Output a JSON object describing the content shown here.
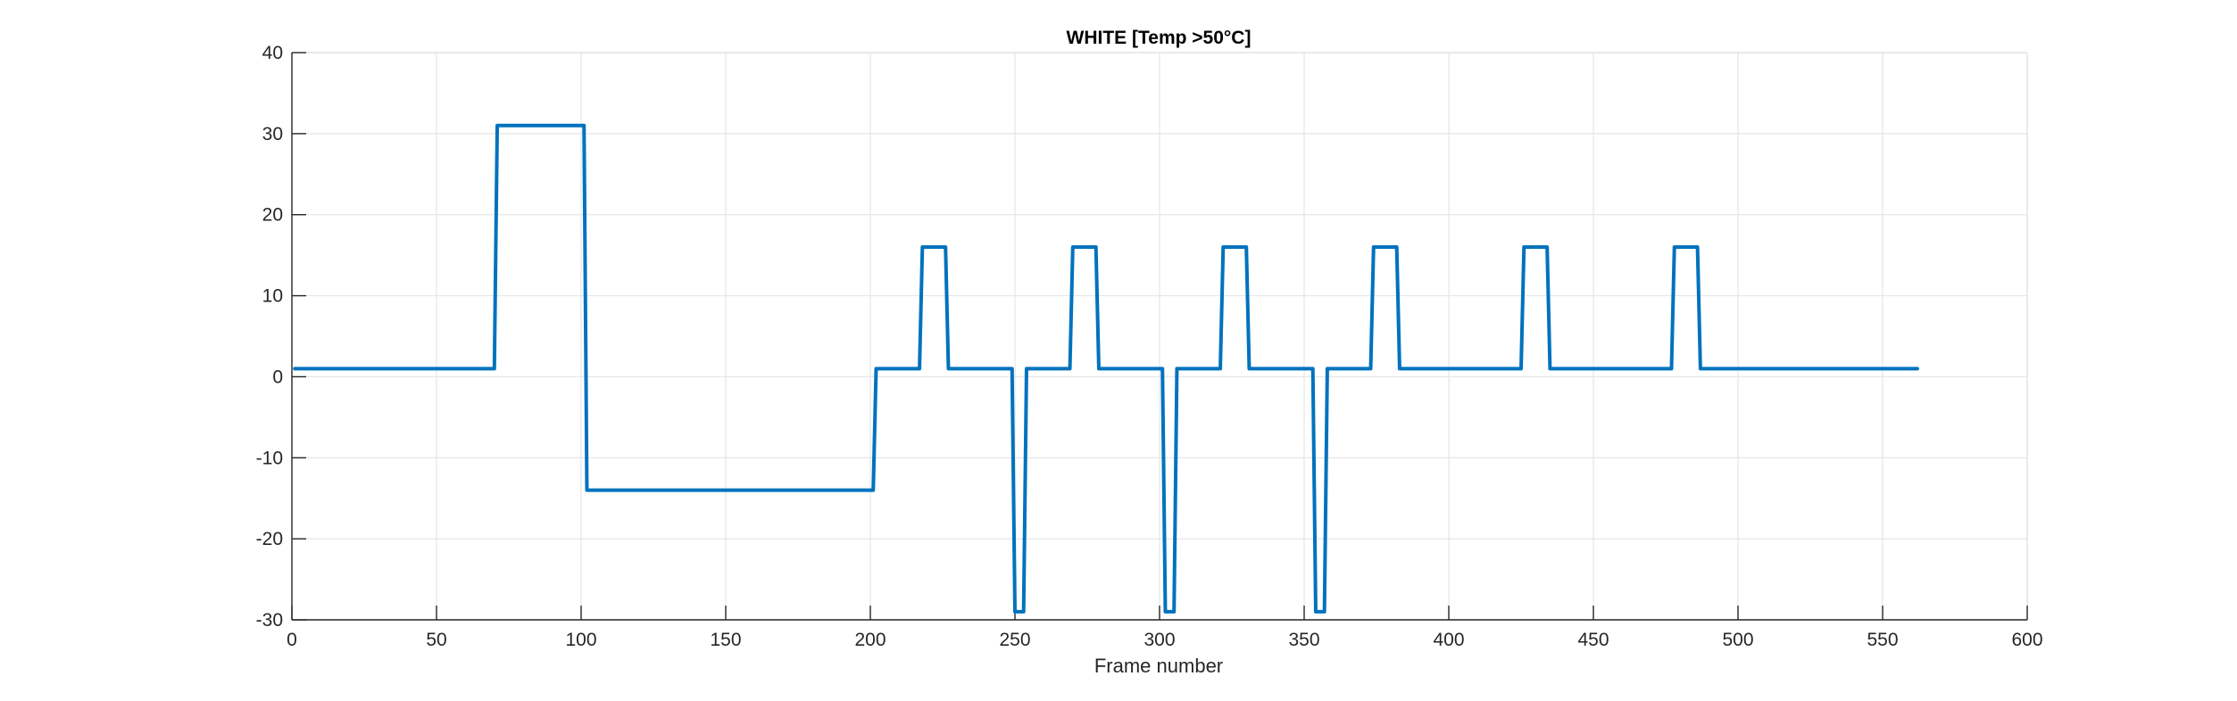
{
  "chart_data": {
    "type": "line",
    "title": "WHITE [Temp >50°C]",
    "xlabel": "Frame number",
    "ylabel": "",
    "xlim": [
      0,
      600
    ],
    "ylim": [
      -30,
      40
    ],
    "xticks": [
      0,
      50,
      100,
      150,
      200,
      250,
      300,
      350,
      400,
      450,
      500,
      550,
      600
    ],
    "yticks": [
      -30,
      -20,
      -10,
      0,
      10,
      20,
      30,
      40
    ],
    "xtick_labels": [
      "0",
      "50",
      "100",
      "150",
      "200",
      "250",
      "300",
      "350",
      "400",
      "450",
      "500",
      "550",
      "600"
    ],
    "ytick_labels": [
      "-30",
      "-20",
      "-10",
      "0",
      "10",
      "20",
      "30",
      "40"
    ],
    "grid": true,
    "colors": {
      "series": "#0072BD",
      "grid": "#e6e6e6",
      "axis": "#262626"
    },
    "series": [
      {
        "x": [
          1,
          70,
          71,
          101,
          102,
          201,
          202,
          217,
          218,
          226,
          227,
          249,
          250,
          253,
          254,
          269,
          270,
          278,
          279,
          301,
          302,
          305,
          306,
          321,
          322,
          330,
          331,
          353,
          354,
          357,
          358,
          373,
          374,
          382,
          383,
          425,
          426,
          434,
          435,
          477,
          478,
          486,
          487,
          562
        ],
        "y": [
          1,
          1,
          31,
          31,
          -14,
          -14,
          1,
          1,
          16,
          16,
          1,
          1,
          -29,
          -29,
          1,
          1,
          16,
          16,
          1,
          1,
          -29,
          -29,
          1,
          1,
          16,
          16,
          1,
          1,
          -29,
          -29,
          1,
          1,
          16,
          16,
          1,
          1,
          16,
          16,
          1,
          1,
          16,
          16,
          1,
          1
        ]
      }
    ]
  }
}
